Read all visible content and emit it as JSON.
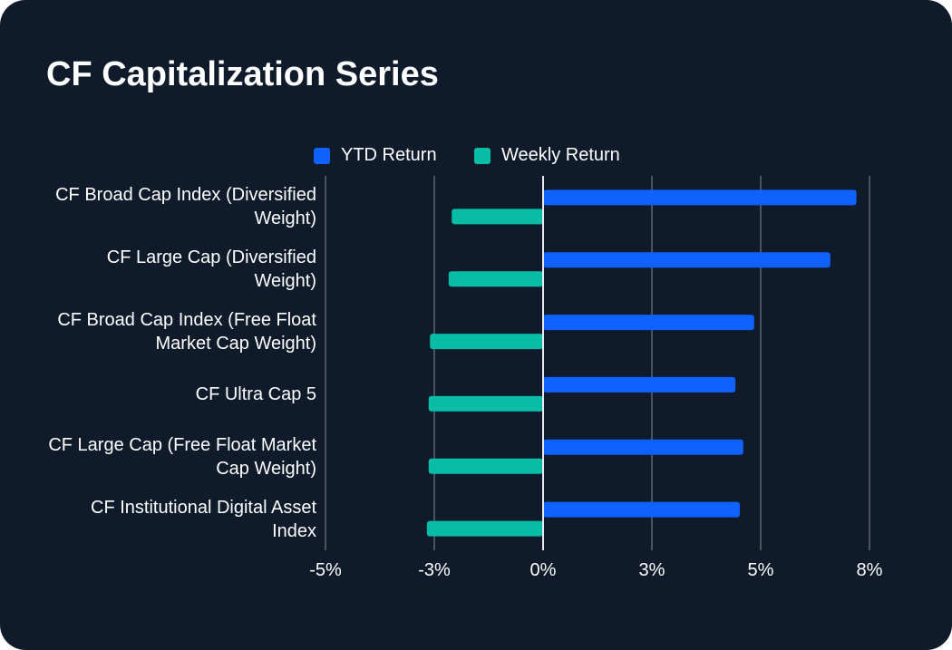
{
  "chart_data": {
    "type": "bar",
    "orientation": "horizontal",
    "title": "CF Capitalization Series",
    "categories": [
      "CF Broad Cap Index (Diversified Weight)",
      "CF Large Cap (Diversified Weight)",
      "CF Broad Cap Index (Free Float Market Cap Weight)",
      "CF Ultra Cap 5",
      "CF Large Cap (Free Float Market Cap Weight)",
      "CF Institutional Digital Asset Index"
    ],
    "series": [
      {
        "name": "YTD Return",
        "color": "#0f62fe",
        "values": [
          7.2,
          6.6,
          4.85,
          4.42,
          4.6,
          4.52
        ]
      },
      {
        "name": "Weekly Return",
        "color": "#08bda5",
        "values": [
          -2.1,
          -2.17,
          -2.6,
          -2.63,
          -2.63,
          -2.67
        ]
      }
    ],
    "xlim": [
      -5,
      7.5
    ],
    "xticks": [
      -5,
      -2.5,
      0,
      2.5,
      5,
      7.5
    ],
    "xtick_labels": [
      "-5%",
      "-3%",
      "0%",
      "3%",
      "5%",
      "8%"
    ],
    "grid": true,
    "legend": "top-center"
  }
}
